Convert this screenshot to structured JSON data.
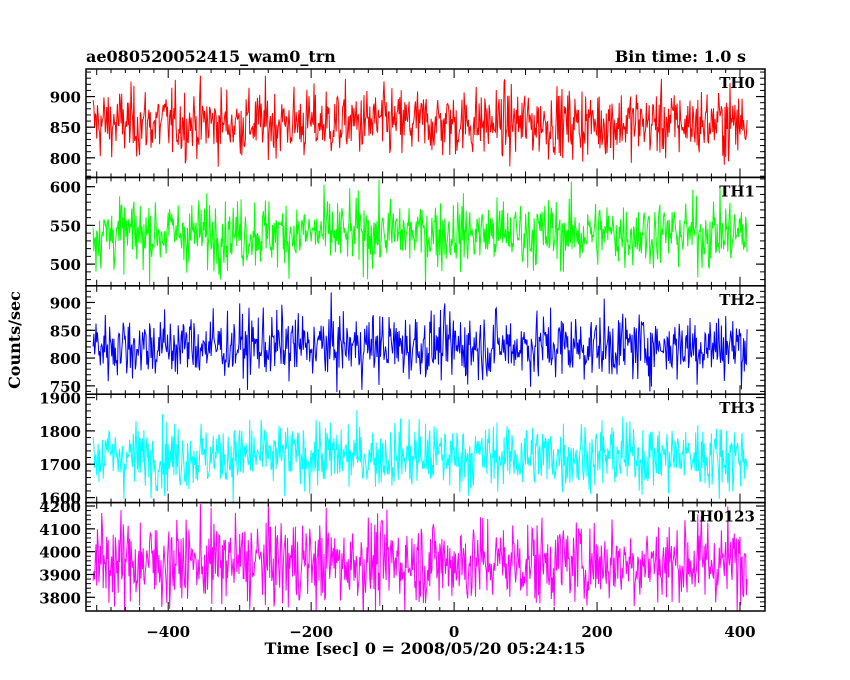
{
  "header": {
    "title": "ae080520052415_wam0_trn",
    "bin_time": "Bin time: 1.0 s"
  },
  "axes": {
    "ylabel": "Counts/sec",
    "xlabel": "Time [sec] 0 = 2008/05/20 05:24:15"
  },
  "chart_data": {
    "type": "line",
    "title": "ae080520052415_wam0_trn",
    "xlabel": "Time [sec] 0 = 2008/05/20 05:24:15",
    "ylabel": "Counts/sec",
    "xlim": [
      -515,
      435
    ],
    "x_range": [
      -505,
      410
    ],
    "bin_time_sec": 1.0,
    "x_ticks": [
      -400,
      -200,
      0,
      200,
      400
    ],
    "series": [
      {
        "name": "TH0",
        "color": "#ff0000",
        "ylim": [
          768,
          945
        ],
        "mean": 857,
        "spread": 28,
        "yticks": [
          800,
          850,
          900
        ]
      },
      {
        "name": "TH1",
        "color": "#00ff00",
        "ylim": [
          472,
          612
        ],
        "mean": 540,
        "spread": 22,
        "yticks": [
          500,
          550,
          600
        ]
      },
      {
        "name": "TH2",
        "color": "#0000ff",
        "ylim": [
          735,
          930
        ],
        "mean": 822,
        "spread": 30,
        "yticks": [
          750,
          800,
          850,
          900
        ]
      },
      {
        "name": "TH3",
        "color": "#00ffff",
        "ylim": [
          1585,
          1910
        ],
        "mean": 1725,
        "spread": 50,
        "yticks": [
          1600,
          1700,
          1800,
          1900
        ]
      },
      {
        "name": "TH0123",
        "color": "#ff00ff",
        "ylim": [
          3740,
          4215
        ],
        "mean": 3955,
        "spread": 95,
        "yticks": [
          3800,
          3900,
          4000,
          4100,
          4200
        ]
      }
    ]
  }
}
